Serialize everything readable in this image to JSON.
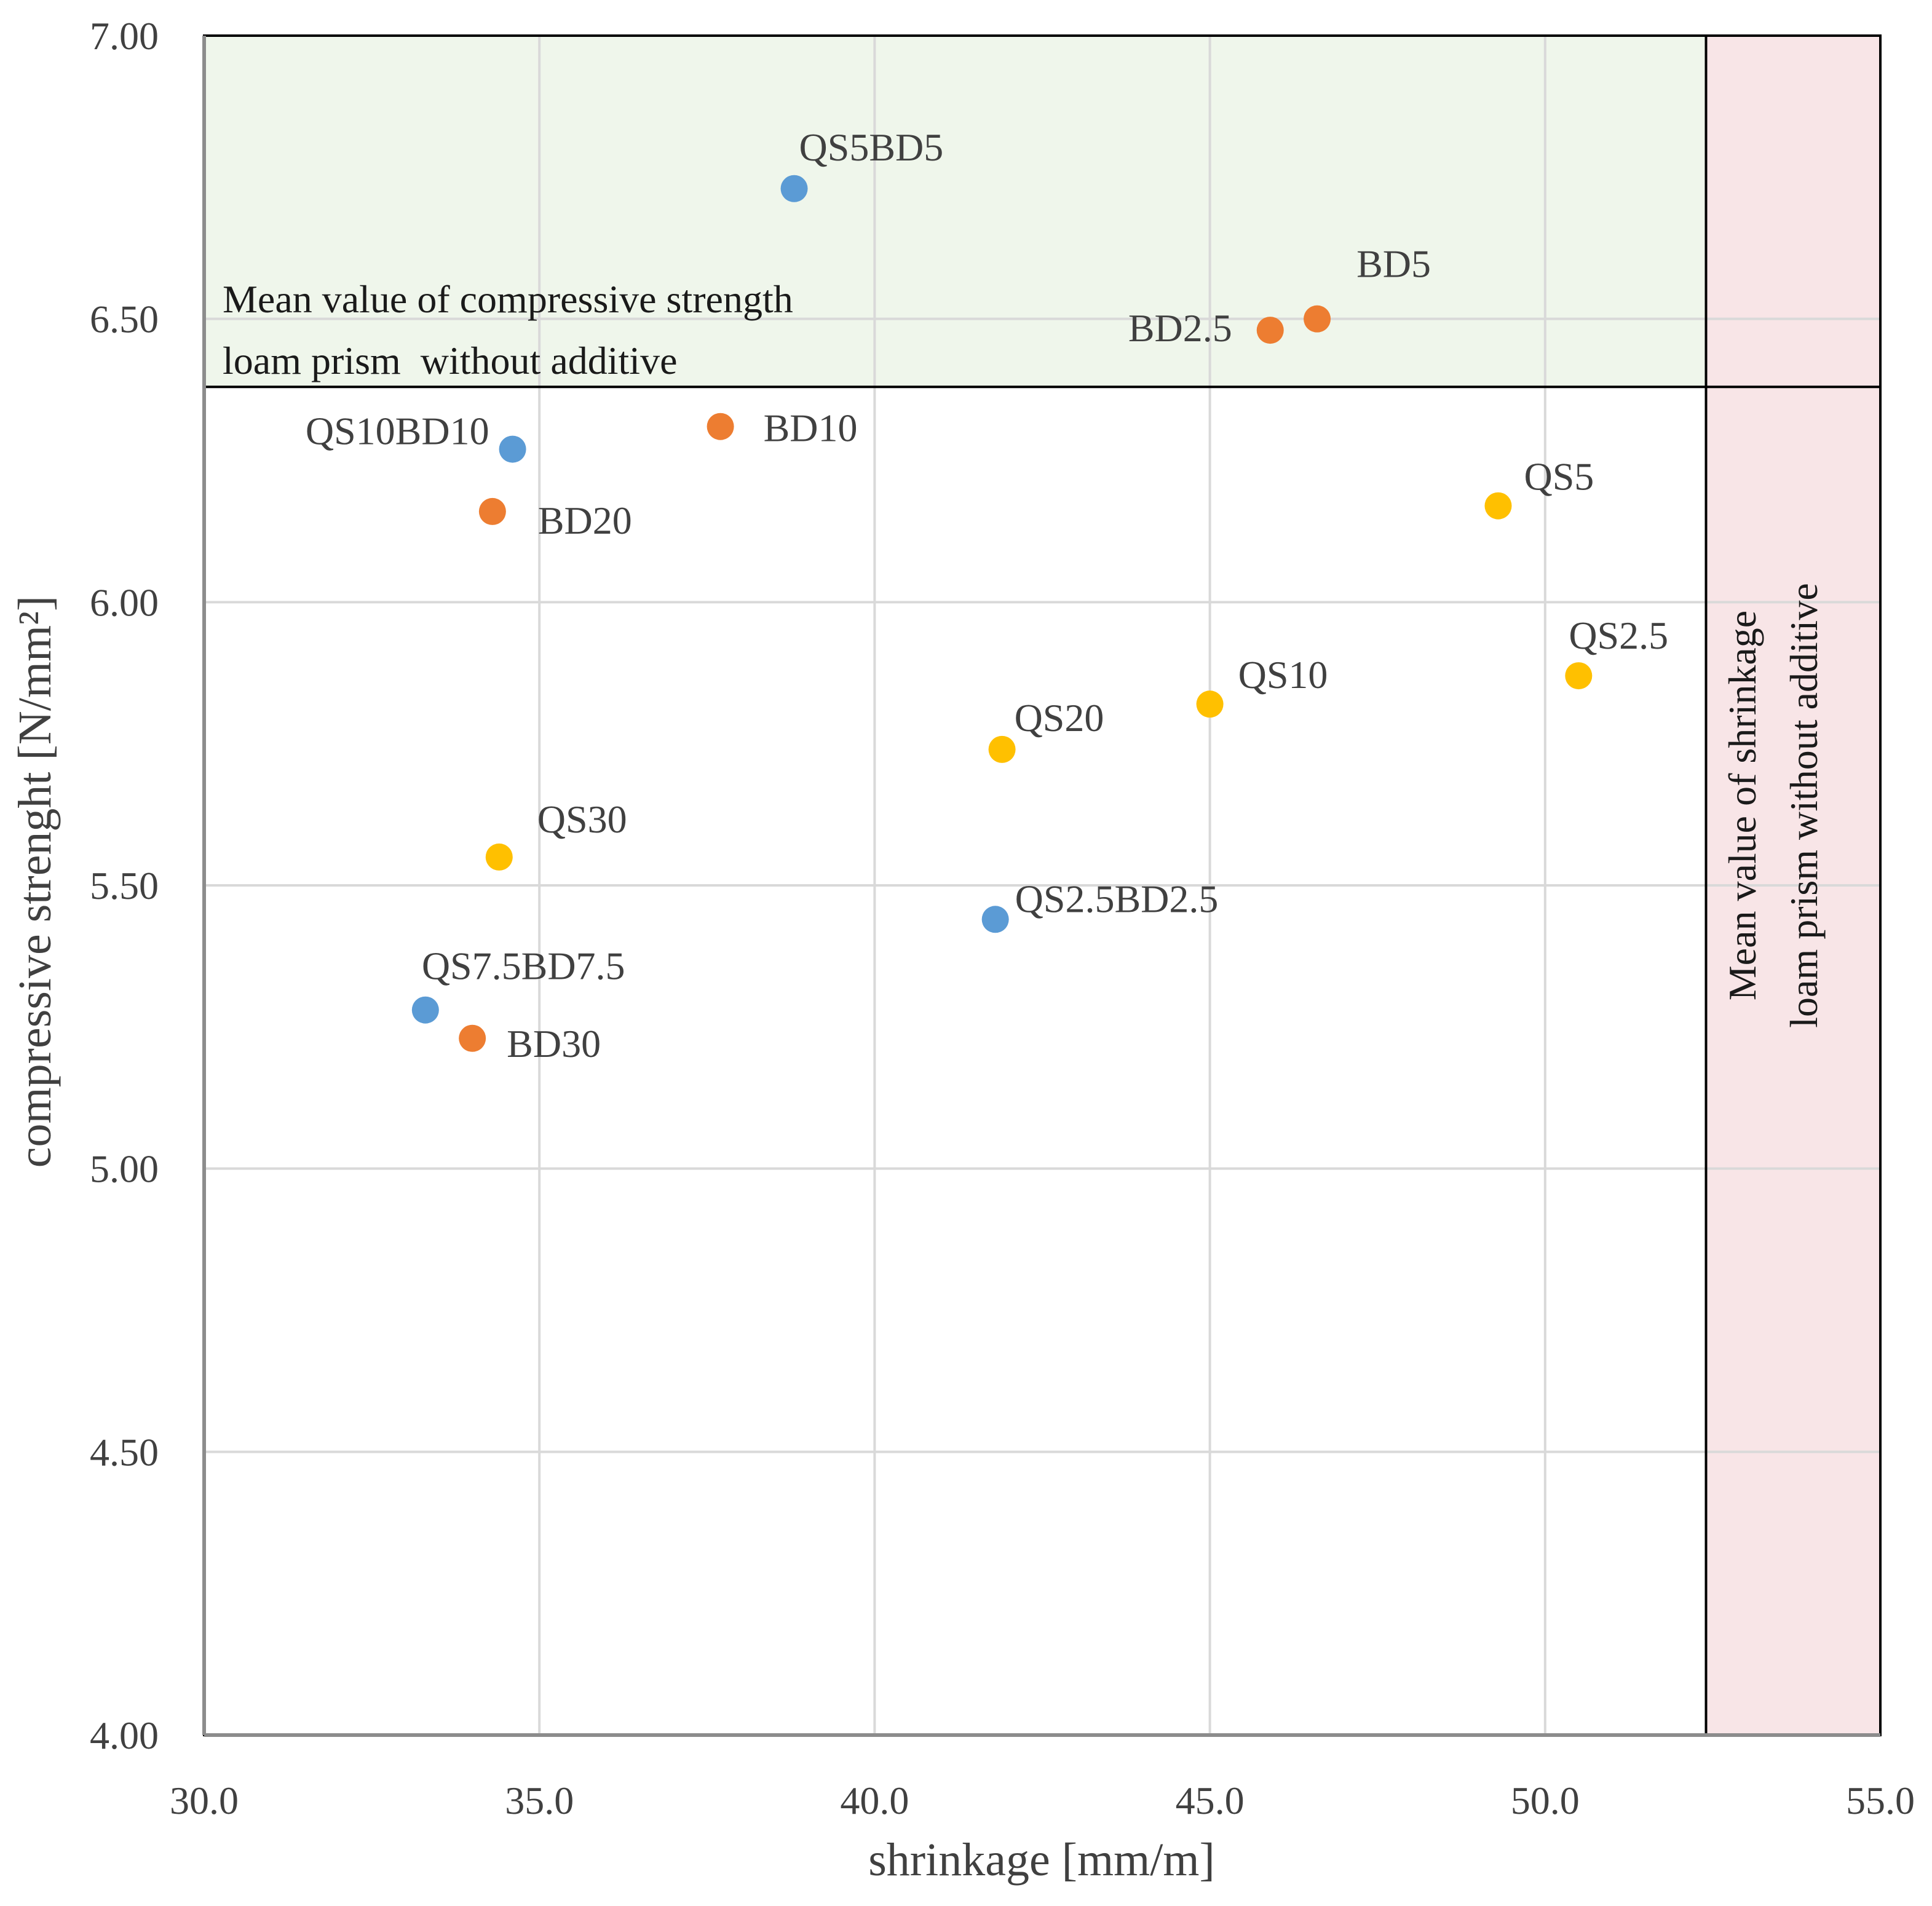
{
  "chart_data": {
    "type": "scatter",
    "xlabel": "shrinkage [mm/m]",
    "ylabel": "compressive strenght [N/mm²]",
    "xlim": [
      30.0,
      55.0
    ],
    "ylim": [
      4.0,
      7.0
    ],
    "xticks": [
      "30.0",
      "35.0",
      "40.0",
      "45.0",
      "50.0",
      "55.0"
    ],
    "yticks": [
      "4.00",
      "4.50",
      "5.00",
      "5.50",
      "6.00",
      "6.50",
      "7.00"
    ],
    "grid": true,
    "colors": {
      "QS": "#FFC000",
      "BD": "#ED7D31",
      "QSBD": "#5B9BD5",
      "strength_zone": "#EFF6EB",
      "shrinkage_zone": "#F8E5E7"
    },
    "reference_lines": {
      "mean_compressive_strength": 6.38,
      "mean_shrinkage": 52.4
    },
    "zone_labels": {
      "strength_line1": "Mean value of compressive strength",
      "strength_line2": "loam prism  without additive",
      "shrinkage_line1": "Mean value of shrinkage",
      "shrinkage_line2": "loam prism without additive"
    },
    "series": [
      {
        "group": "QS",
        "points": [
          {
            "label": "QS2.5",
            "x": 50.5,
            "y": 5.87
          },
          {
            "label": "QS5",
            "x": 49.3,
            "y": 6.17
          },
          {
            "label": "QS10",
            "x": 45.0,
            "y": 5.82
          },
          {
            "label": "QS20",
            "x": 41.9,
            "y": 5.74
          },
          {
            "label": "QS30",
            "x": 34.4,
            "y": 5.55
          }
        ]
      },
      {
        "group": "BD",
        "points": [
          {
            "label": "BD2.5",
            "x": 45.9,
            "y": 6.48
          },
          {
            "label": "BD5",
            "x": 46.6,
            "y": 6.5
          },
          {
            "label": "BD10",
            "x": 37.7,
            "y": 6.31
          },
          {
            "label": "BD20",
            "x": 34.3,
            "y": 6.16
          },
          {
            "label": "BD30",
            "x": 34.0,
            "y": 5.23
          }
        ]
      },
      {
        "group": "QSBD",
        "points": [
          {
            "label": "QS2.5BD2.5",
            "x": 41.8,
            "y": 5.44
          },
          {
            "label": "QS5BD5",
            "x": 38.8,
            "y": 6.73
          },
          {
            "label": "QS7.5BD7.5",
            "x": 33.3,
            "y": 5.28
          },
          {
            "label": "QS10BD10",
            "x": 34.6,
            "y": 6.27
          }
        ]
      }
    ]
  }
}
